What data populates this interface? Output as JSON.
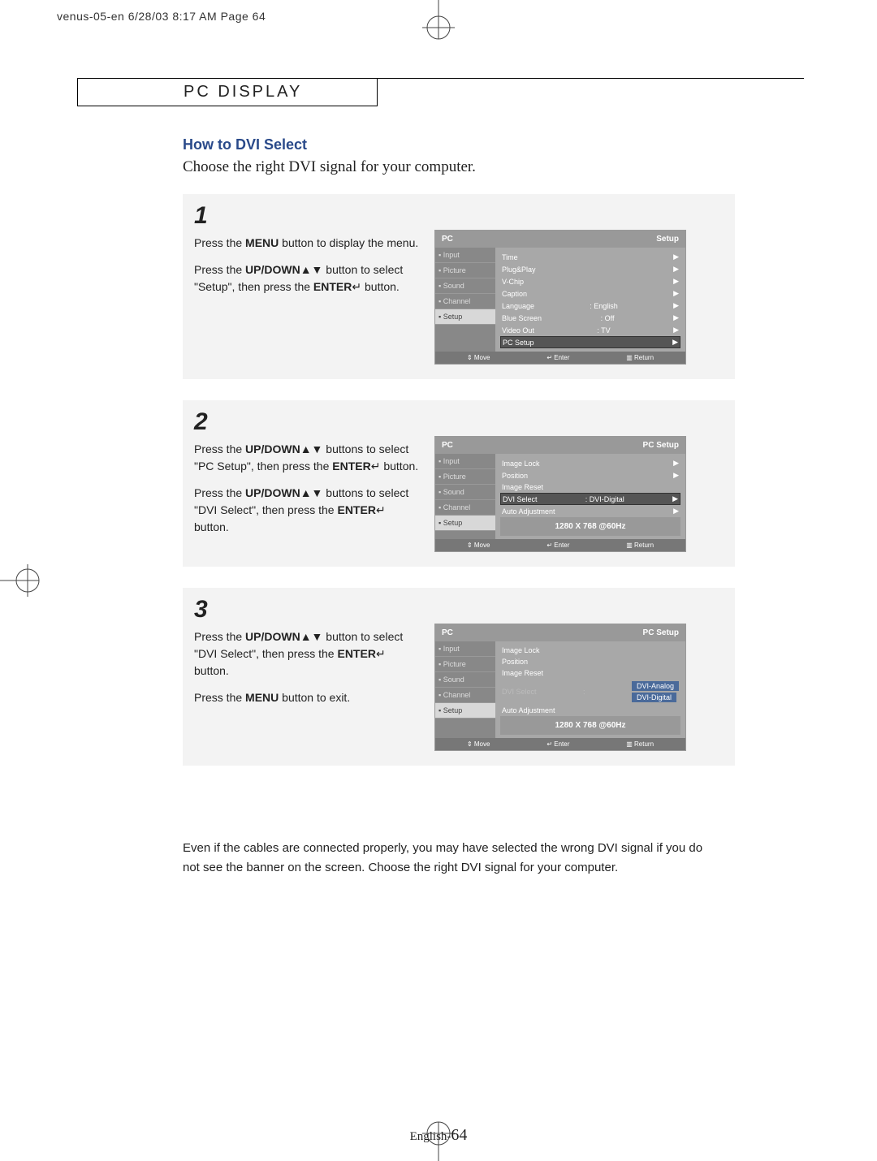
{
  "printmark": "venus-05-en  6/28/03 8:17 AM  Page 64",
  "tab_title": "PC DISPLAY",
  "heading": "How to DVI Select",
  "intro": "Choose the right DVI signal for your computer.",
  "steps": [
    {
      "num": "1",
      "texts": [
        {
          "plain": "Press the ",
          "bold": "MENU",
          "after": " button to display the menu."
        },
        {
          "plain": "Press the ",
          "bold": "UP/DOWN",
          "sym": "▲▼",
          "after": " button to select \"Setup\", then press the ",
          "bold2": "ENTER",
          "sym2": "↵",
          "after2": " button."
        }
      ],
      "menu": {
        "header_left": "PC",
        "header_right": "Setup",
        "sidebar": [
          "Input",
          "Picture",
          "Sound",
          "Channel",
          "Setup"
        ],
        "active": 4,
        "rows": [
          {
            "l": "Time",
            "r": "▶"
          },
          {
            "l": "Plug&Play",
            "r": "▶"
          },
          {
            "l": "V-Chip",
            "r": "▶"
          },
          {
            "l": "Caption",
            "r": "▶"
          },
          {
            "l": "Language",
            "c": ": English",
            "r": "▶"
          },
          {
            "l": "Blue Screen",
            "c": ": Off",
            "r": "▶"
          },
          {
            "l": "Video Out",
            "c": ": TV",
            "r": "▶"
          },
          {
            "l": "PC Setup",
            "r": "▶",
            "sel": true
          }
        ],
        "footer": [
          "⇕ Move",
          "↵ Enter",
          "▥ Return"
        ]
      }
    },
    {
      "num": "2",
      "texts": [
        {
          "plain": "Press the ",
          "bold": "UP/DOWN",
          "sym": "▲▼",
          "after": " buttons to select \"PC Setup\", then press the ",
          "bold2": "ENTER",
          "sym2": "↵",
          "after2": " button."
        },
        {
          "plain": "Press the ",
          "bold": "UP/DOWN",
          "sym": "▲▼",
          "after": " buttons to select \"DVI Select\", then press the ",
          "bold2": "ENTER",
          "sym2": "↵",
          "after2": " button."
        }
      ],
      "menu": {
        "header_left": "PC",
        "header_right": "PC Setup",
        "sidebar": [
          "Input",
          "Picture",
          "Sound",
          "Channel",
          "Setup"
        ],
        "active": 4,
        "rows": [
          {
            "l": "Image Lock",
            "r": "▶"
          },
          {
            "l": "Position",
            "r": "▶"
          },
          {
            "l": "Image Reset",
            "r": ""
          },
          {
            "l": "DVI Select",
            "c": ": DVI-Digital",
            "r": "▶",
            "sel": true
          },
          {
            "l": "Auto Adjustment",
            "r": "▶"
          }
        ],
        "resolution": "1280 X 768 @60Hz",
        "footer": [
          "⇕ Move",
          "↵ Enter",
          "▥ Return"
        ]
      }
    },
    {
      "num": "3",
      "texts": [
        {
          "plain": "Press the ",
          "bold": "UP/DOWN",
          "sym": "▲▼",
          "after": " button to select \"DVI Select\", then press the ",
          "bold2": "ENTER",
          "sym2": "↵",
          "after2": " button."
        },
        {
          "plain": "Press the ",
          "bold": "MENU",
          "after": " button to exit."
        }
      ],
      "menu": {
        "header_left": "PC",
        "header_right": "PC Setup",
        "sidebar": [
          "Input",
          "Picture",
          "Sound",
          "Channel",
          "Setup"
        ],
        "active": 4,
        "rows": [
          {
            "l": "Image Lock",
            "r": ""
          },
          {
            "l": "Position",
            "r": ""
          },
          {
            "l": "Image Reset",
            "r": ""
          },
          {
            "l": "DVI Select",
            "c": ":",
            "opts": [
              "DVI-Analog",
              "DVI-Digital"
            ]
          },
          {
            "l": "Auto Adjustment",
            "r": ""
          }
        ],
        "resolution": "1280 X 768 @60Hz",
        "footer": [
          "⇕ Move",
          "↵ Enter",
          "▥ Return"
        ]
      }
    }
  ],
  "note": "Even if the cables are connected properly, you may have selected the wrong DVI signal if you do not see the banner on the screen. Choose the right DVI signal for your computer.",
  "pagenum_prefix": "English-",
  "pagenum": "64"
}
